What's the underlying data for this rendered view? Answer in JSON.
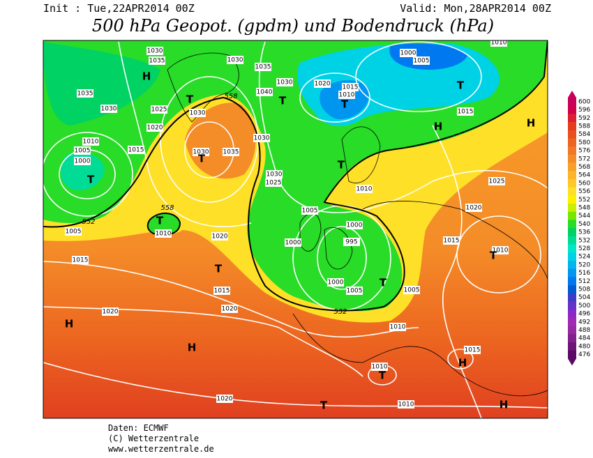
{
  "header": {
    "init": "Init : Tue,22APR2014 00Z",
    "valid": "Valid: Mon,28APR2014 00Z",
    "title": "500 hPa Geopot. (gpdm) und Bodendruck (hPa)"
  },
  "isobar_labels": [
    "1030",
    "1035",
    "1030",
    "1035",
    "1030",
    "1040",
    "1020",
    "1015",
    "1010",
    "1035",
    "1030",
    "1025",
    "1030",
    "1020",
    "1010",
    "1005",
    "1000",
    "1015",
    "1030",
    "1035",
    "1030",
    "1030",
    "1025",
    "1010",
    "1025",
    "1020",
    "1005",
    "1000",
    "1010",
    "1020",
    "1005",
    "1015",
    "1015",
    "1020",
    "1020",
    "1000",
    "1005",
    "1005",
    "1015",
    "1010",
    "1010",
    "1015",
    "1010",
    "1020",
    "1010",
    "1000",
    "1005",
    "1010",
    "1015",
    "1000",
    "995"
  ],
  "geopotential_labels": [
    "558",
    "558",
    "552",
    "552"
  ],
  "systems": [
    "H",
    "T",
    "T",
    "T",
    "T",
    "T",
    "H",
    "H",
    "T",
    "T",
    "T",
    "T",
    "H",
    "H",
    "T",
    "H",
    "T",
    "H",
    "T",
    "T"
  ],
  "colorbar": {
    "levels": [
      600,
      596,
      592,
      588,
      584,
      580,
      576,
      572,
      568,
      564,
      560,
      556,
      552,
      548,
      544,
      540,
      536,
      532,
      528,
      524,
      520,
      516,
      512,
      508,
      504,
      500,
      496,
      492,
      488,
      484,
      480,
      476
    ],
    "colors": [
      "#c8005a",
      "#d2004b",
      "#dc1e32",
      "#e63c1e",
      "#e8501e",
      "#ec6420",
      "#f07828",
      "#f48c28",
      "#f8a028",
      "#fcb428",
      "#ffc828",
      "#ffe028",
      "#fff000",
      "#c8f000",
      "#78e600",
      "#28dc28",
      "#00d264",
      "#00dc96",
      "#00e6c8",
      "#00d2e6",
      "#00b4f0",
      "#0096f0",
      "#0078f0",
      "#005ad2",
      "#3c3cc8",
      "#6432c8",
      "#8c28c8",
      "#a028b4",
      "#9628a0",
      "#82208c",
      "#6e1478",
      "#5a0a64"
    ]
  },
  "footer": [
    "Daten: ECMWF",
    "(C) Wetterzentrale",
    "www.wetterzentrale.de"
  ]
}
